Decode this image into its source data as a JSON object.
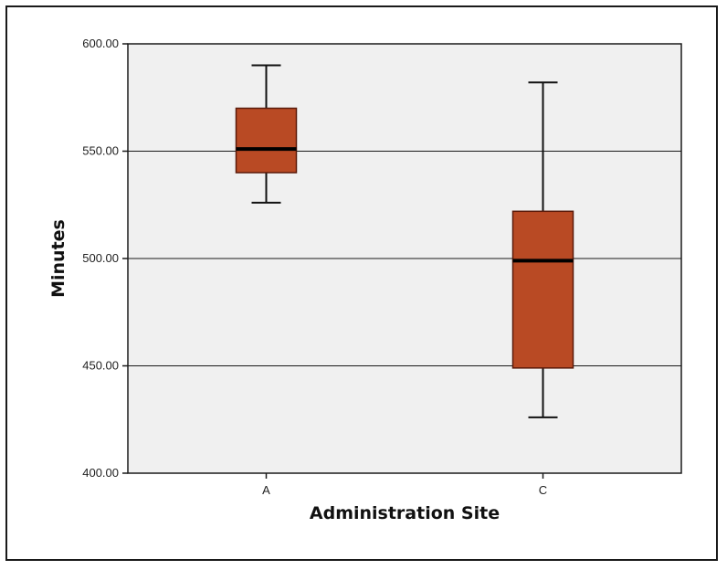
{
  "chart_data": {
    "type": "box",
    "title": "",
    "xlabel": "Administration Site",
    "ylabel": "Minutes",
    "ylim": [
      400,
      600
    ],
    "y_ticks": [
      "400.00",
      "450.00",
      "500.00",
      "550.00",
      "600.00"
    ],
    "grid": "horizontal",
    "categories": [
      "A",
      "C"
    ],
    "boxes": [
      {
        "category": "A",
        "whisker_low": 526,
        "q1": 540,
        "median": 551,
        "q3": 570,
        "whisker_high": 590
      },
      {
        "category": "C",
        "whisker_low": 426,
        "q1": 449,
        "median": 499,
        "q3": 522,
        "whisker_high": 582
      }
    ],
    "colors": {
      "box_fill": "#B94A24",
      "box_stroke": "#5a1a0a",
      "plot_background": "#F0F0F0",
      "grid": "#1a1a1a"
    }
  }
}
